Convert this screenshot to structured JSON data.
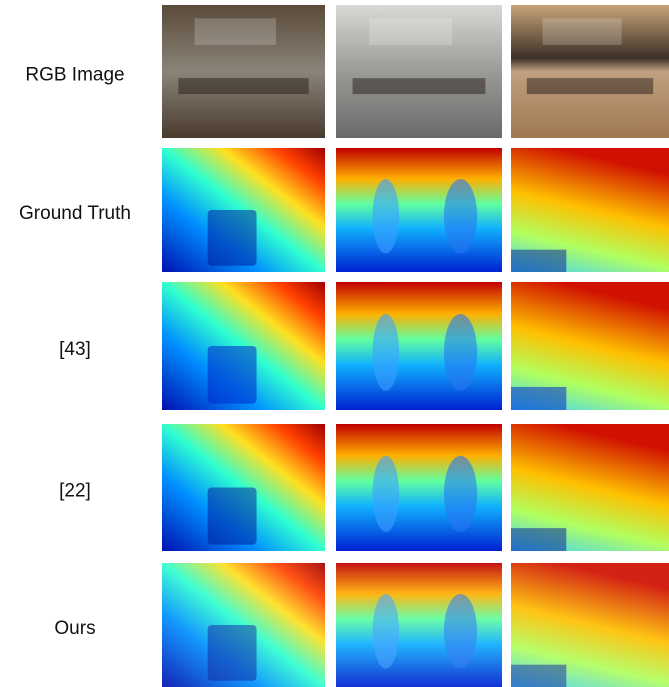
{
  "rows": [
    {
      "label": "RGB Image"
    },
    {
      "label": "Ground Truth"
    },
    {
      "label": "[43]"
    },
    {
      "label": "[22]"
    },
    {
      "label": "Ours"
    }
  ]
}
